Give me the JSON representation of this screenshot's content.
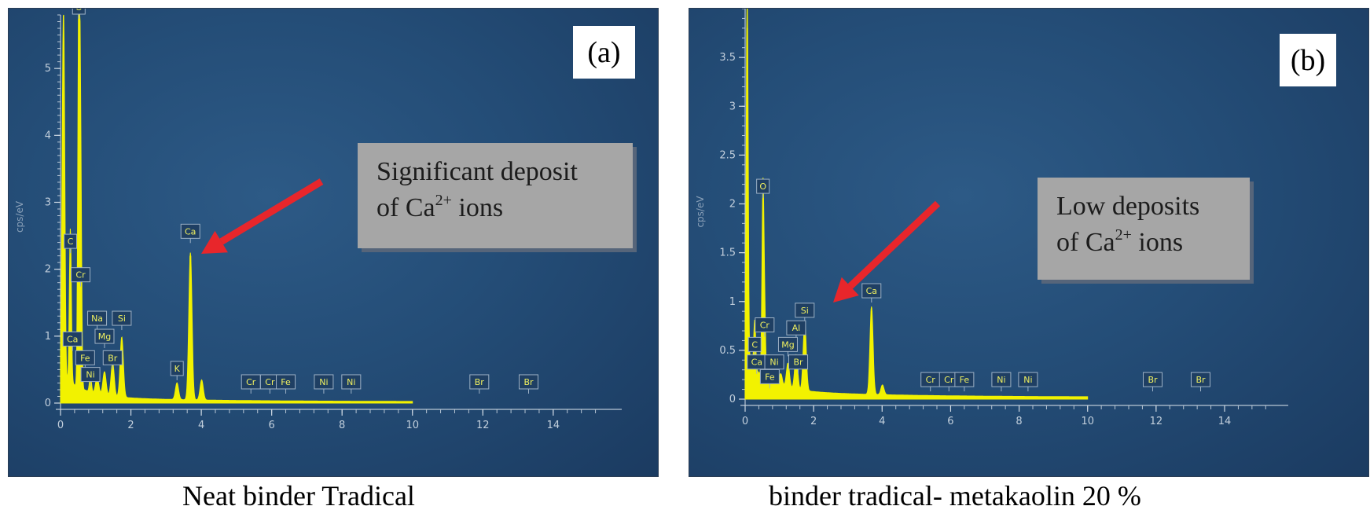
{
  "panels": [
    {
      "tag": "(a)",
      "caption": "Neat binder Tradical",
      "callout": {
        "line1": "Significant deposit",
        "line2_prefix": "of Ca",
        "line2_sup": "2+",
        "line2_suffix": " ions"
      }
    },
    {
      "tag": "(b)",
      "caption": "binder tradical- metakaolin 20 %",
      "callout": {
        "line1": "Low deposits",
        "line2_prefix": "of Ca",
        "line2_sup": "2+",
        "line2_suffix": " ions"
      }
    }
  ],
  "colors": {
    "spectrum": "#f2f200",
    "arrow": "#e8262b",
    "callout_bg": "#a6a6a6",
    "panel_bg": "#244d77"
  },
  "chart_data": [
    {
      "type": "line",
      "ylabel": "cps/eV",
      "xlim": [
        0,
        15.5
      ],
      "ylim": [
        0,
        5.8
      ],
      "x_ticks": [
        "0",
        "2",
        "4",
        "6",
        "8",
        "10",
        "12",
        "14"
      ],
      "y_ticks": [
        "0",
        "1",
        "2",
        "3",
        "4",
        "5"
      ],
      "peaks": [
        {
          "x": 0.06,
          "y": 3.1
        },
        {
          "x": 0.1,
          "y": 3.9
        },
        {
          "x": 0.28,
          "y": 2.3
        },
        {
          "x": 0.52,
          "y": 5.8
        },
        {
          "x": 0.57,
          "y": 3.3
        },
        {
          "x": 0.85,
          "y": 0.25
        },
        {
          "x": 1.04,
          "y": 0.25
        },
        {
          "x": 1.25,
          "y": 0.35
        },
        {
          "x": 1.48,
          "y": 0.5
        },
        {
          "x": 1.74,
          "y": 0.9
        },
        {
          "x": 3.31,
          "y": 0.25
        },
        {
          "x": 3.69,
          "y": 2.2
        },
        {
          "x": 4.01,
          "y": 0.3
        }
      ],
      "peak_labels": [
        {
          "text": "O",
          "x": 0.52,
          "y": 5.8
        },
        {
          "text": "C",
          "x": 0.28,
          "y": 2.3
        },
        {
          "text": "Cr",
          "x": 0.57,
          "y": 1.8
        },
        {
          "text": "Na",
          "x": 1.04,
          "y": 1.15
        },
        {
          "text": "Si",
          "x": 1.74,
          "y": 1.15
        },
        {
          "text": "Mg",
          "x": 1.25,
          "y": 0.88
        },
        {
          "text": "Ca",
          "x": 0.34,
          "y": 0.84
        },
        {
          "text": "Fe",
          "x": 0.7,
          "y": 0.56
        },
        {
          "text": "Br",
          "x": 1.48,
          "y": 0.56
        },
        {
          "text": "Ni",
          "x": 0.85,
          "y": 0.31
        },
        {
          "text": "K",
          "x": 3.31,
          "y": 0.4
        },
        {
          "text": "Ca",
          "x": 3.69,
          "y": 2.45
        },
        {
          "text": "Cr",
          "x": 5.41,
          "y": 0.2
        },
        {
          "text": "Cr",
          "x": 5.95,
          "y": 0.2
        },
        {
          "text": "Fe",
          "x": 6.4,
          "y": 0.2
        },
        {
          "text": "Ni",
          "x": 7.48,
          "y": 0.2
        },
        {
          "text": "Ni",
          "x": 8.26,
          "y": 0.2
        },
        {
          "text": "Br",
          "x": 11.9,
          "y": 0.2
        },
        {
          "text": "Br",
          "x": 13.3,
          "y": 0.2
        }
      ]
    },
    {
      "type": "line",
      "ylabel": "cps/eV",
      "xlim": [
        0,
        15.4
      ],
      "ylim": [
        0,
        4.0
      ],
      "x_ticks": [
        "0",
        "2",
        "4",
        "6",
        "8",
        "10",
        "12",
        "14"
      ],
      "y_ticks": [
        "0",
        "0.5",
        "1",
        "1.5",
        "2",
        "2.5",
        "3",
        "3.5"
      ],
      "peaks": [
        {
          "x": 0.06,
          "y": 3.8
        },
        {
          "x": 0.28,
          "y": 0.5
        },
        {
          "x": 0.52,
          "y": 1.9
        },
        {
          "x": 0.57,
          "y": 0.6
        },
        {
          "x": 0.85,
          "y": 0.12
        },
        {
          "x": 1.04,
          "y": 0.12
        },
        {
          "x": 1.25,
          "y": 0.25
        },
        {
          "x": 1.49,
          "y": 0.35
        },
        {
          "x": 1.74,
          "y": 0.7
        },
        {
          "x": 3.69,
          "y": 0.9
        },
        {
          "x": 4.01,
          "y": 0.1
        }
      ],
      "peak_labels": [
        {
          "text": "O",
          "x": 0.52,
          "y": 2.1
        },
        {
          "text": "Cr",
          "x": 0.57,
          "y": 0.68
        },
        {
          "text": "Si",
          "x": 1.74,
          "y": 0.83
        },
        {
          "text": "Al",
          "x": 1.49,
          "y": 0.65
        },
        {
          "text": "C",
          "x": 0.28,
          "y": 0.48
        },
        {
          "text": "Mg",
          "x": 1.25,
          "y": 0.48
        },
        {
          "text": "Ca",
          "x": 0.34,
          "y": 0.3
        },
        {
          "text": "Ni",
          "x": 0.85,
          "y": 0.3
        },
        {
          "text": "Br",
          "x": 1.55,
          "y": 0.3
        },
        {
          "text": "Fe",
          "x": 0.72,
          "y": 0.15
        },
        {
          "text": "Ca",
          "x": 3.69,
          "y": 1.03
        },
        {
          "text": "Cr",
          "x": 5.41,
          "y": 0.12
        },
        {
          "text": "Cr",
          "x": 5.95,
          "y": 0.12
        },
        {
          "text": "Fe",
          "x": 6.4,
          "y": 0.12
        },
        {
          "text": "Ni",
          "x": 7.48,
          "y": 0.12
        },
        {
          "text": "Ni",
          "x": 8.26,
          "y": 0.12
        },
        {
          "text": "Br",
          "x": 11.9,
          "y": 0.12
        },
        {
          "text": "Br",
          "x": 13.3,
          "y": 0.12
        }
      ]
    }
  ]
}
